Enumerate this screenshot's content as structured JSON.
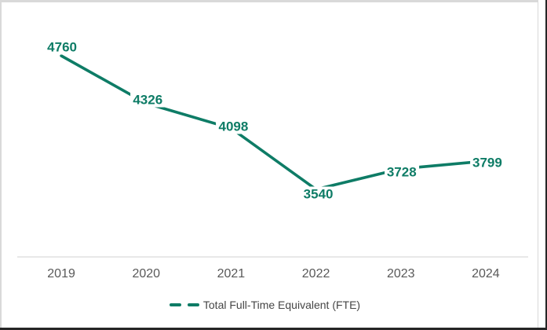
{
  "chart_data": {
    "type": "line",
    "categories": [
      "2019",
      "2020",
      "2021",
      "2022",
      "2023",
      "2024"
    ],
    "series": [
      {
        "name": "Total Full-Time Equivalent (FTE)",
        "values": [
          4760,
          4326,
          4098,
          3540,
          3728,
          3799
        ]
      }
    ],
    "title": "",
    "xlabel": "",
    "ylabel": "",
    "grid": false,
    "y_axis_visible": false,
    "legend_position": "bottom",
    "legend_marker": "dashed-line",
    "colors": {
      "line": "#0E7C66",
      "data_label": "#0E7C66",
      "axis_text": "#595959",
      "legend_text": "#464646",
      "axis_line": "#D9D9D9",
      "chart_border": "#D9D9D9",
      "frame_border": "#262626",
      "background": "#FFFFFF"
    }
  }
}
